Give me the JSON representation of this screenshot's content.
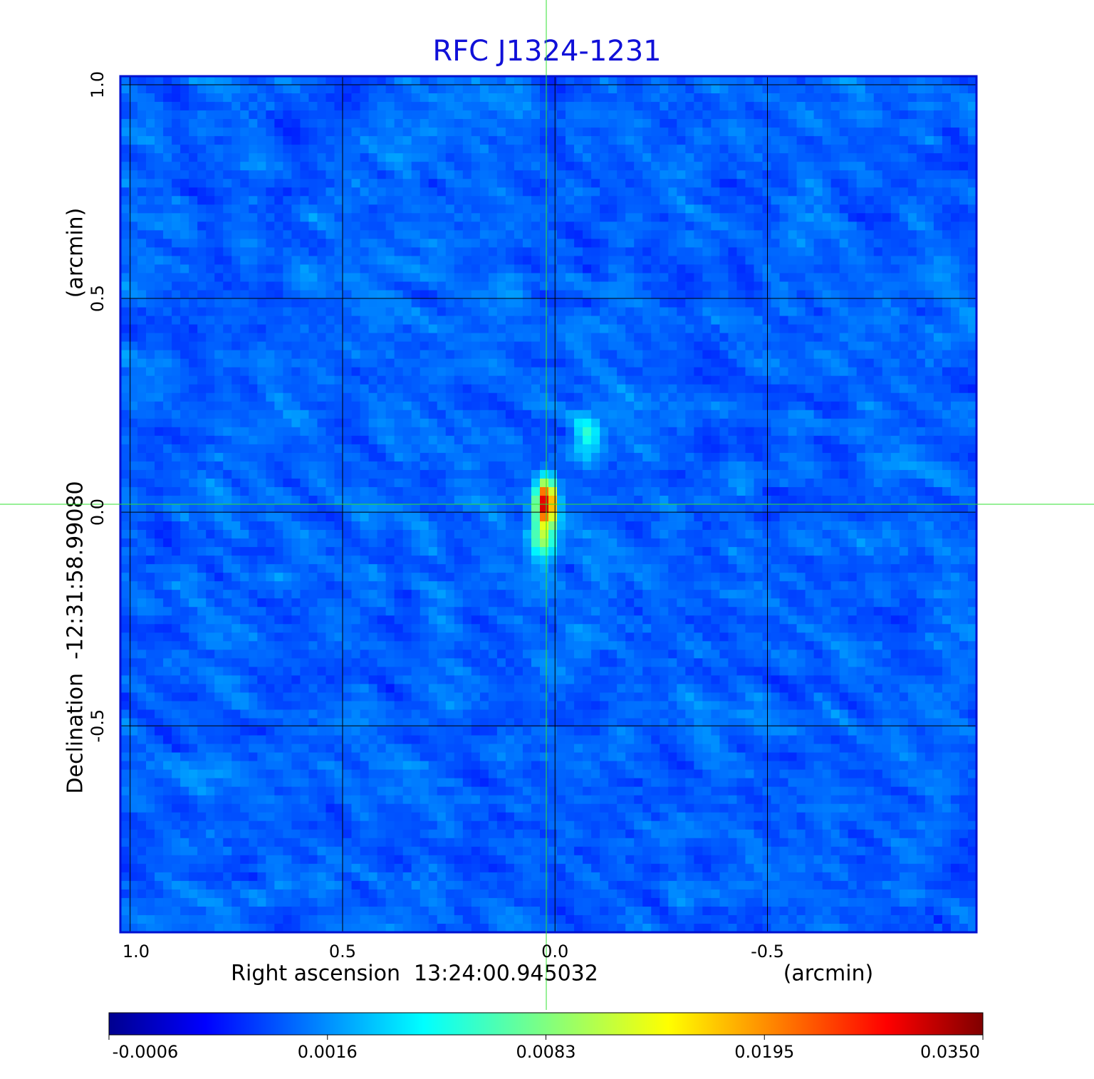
{
  "chart_data": {
    "type": "heatmap",
    "title": "RFC J1324-1231",
    "xlabel": "Right ascension  13:24:00.945032",
    "xunit": "(arcmin)",
    "ylabel": "Declination  -12:31:58.99080",
    "yunit": "(arcmin)",
    "xlim": [
      1.023,
      -0.992
    ],
    "xticks": [
      {
        "value": 1,
        "label": "1.0"
      },
      0.5,
      {
        "value": 0,
        "label": "0.0"
      },
      -0.5
    ],
    "ylim": [
      -0.983,
      1.02
    ],
    "yticks": [
      {
        "value": 1,
        "label": "1.0"
      },
      0.5,
      {
        "value": 0,
        "label": "0.0"
      },
      -0.5
    ],
    "grid": true,
    "colormap": "jet",
    "colorbar_ticks": [
      -0.0006,
      0.0016,
      0.0083,
      0.0195,
      {
        "value": 0.035,
        "label": "0.0350"
      }
    ]
  }
}
